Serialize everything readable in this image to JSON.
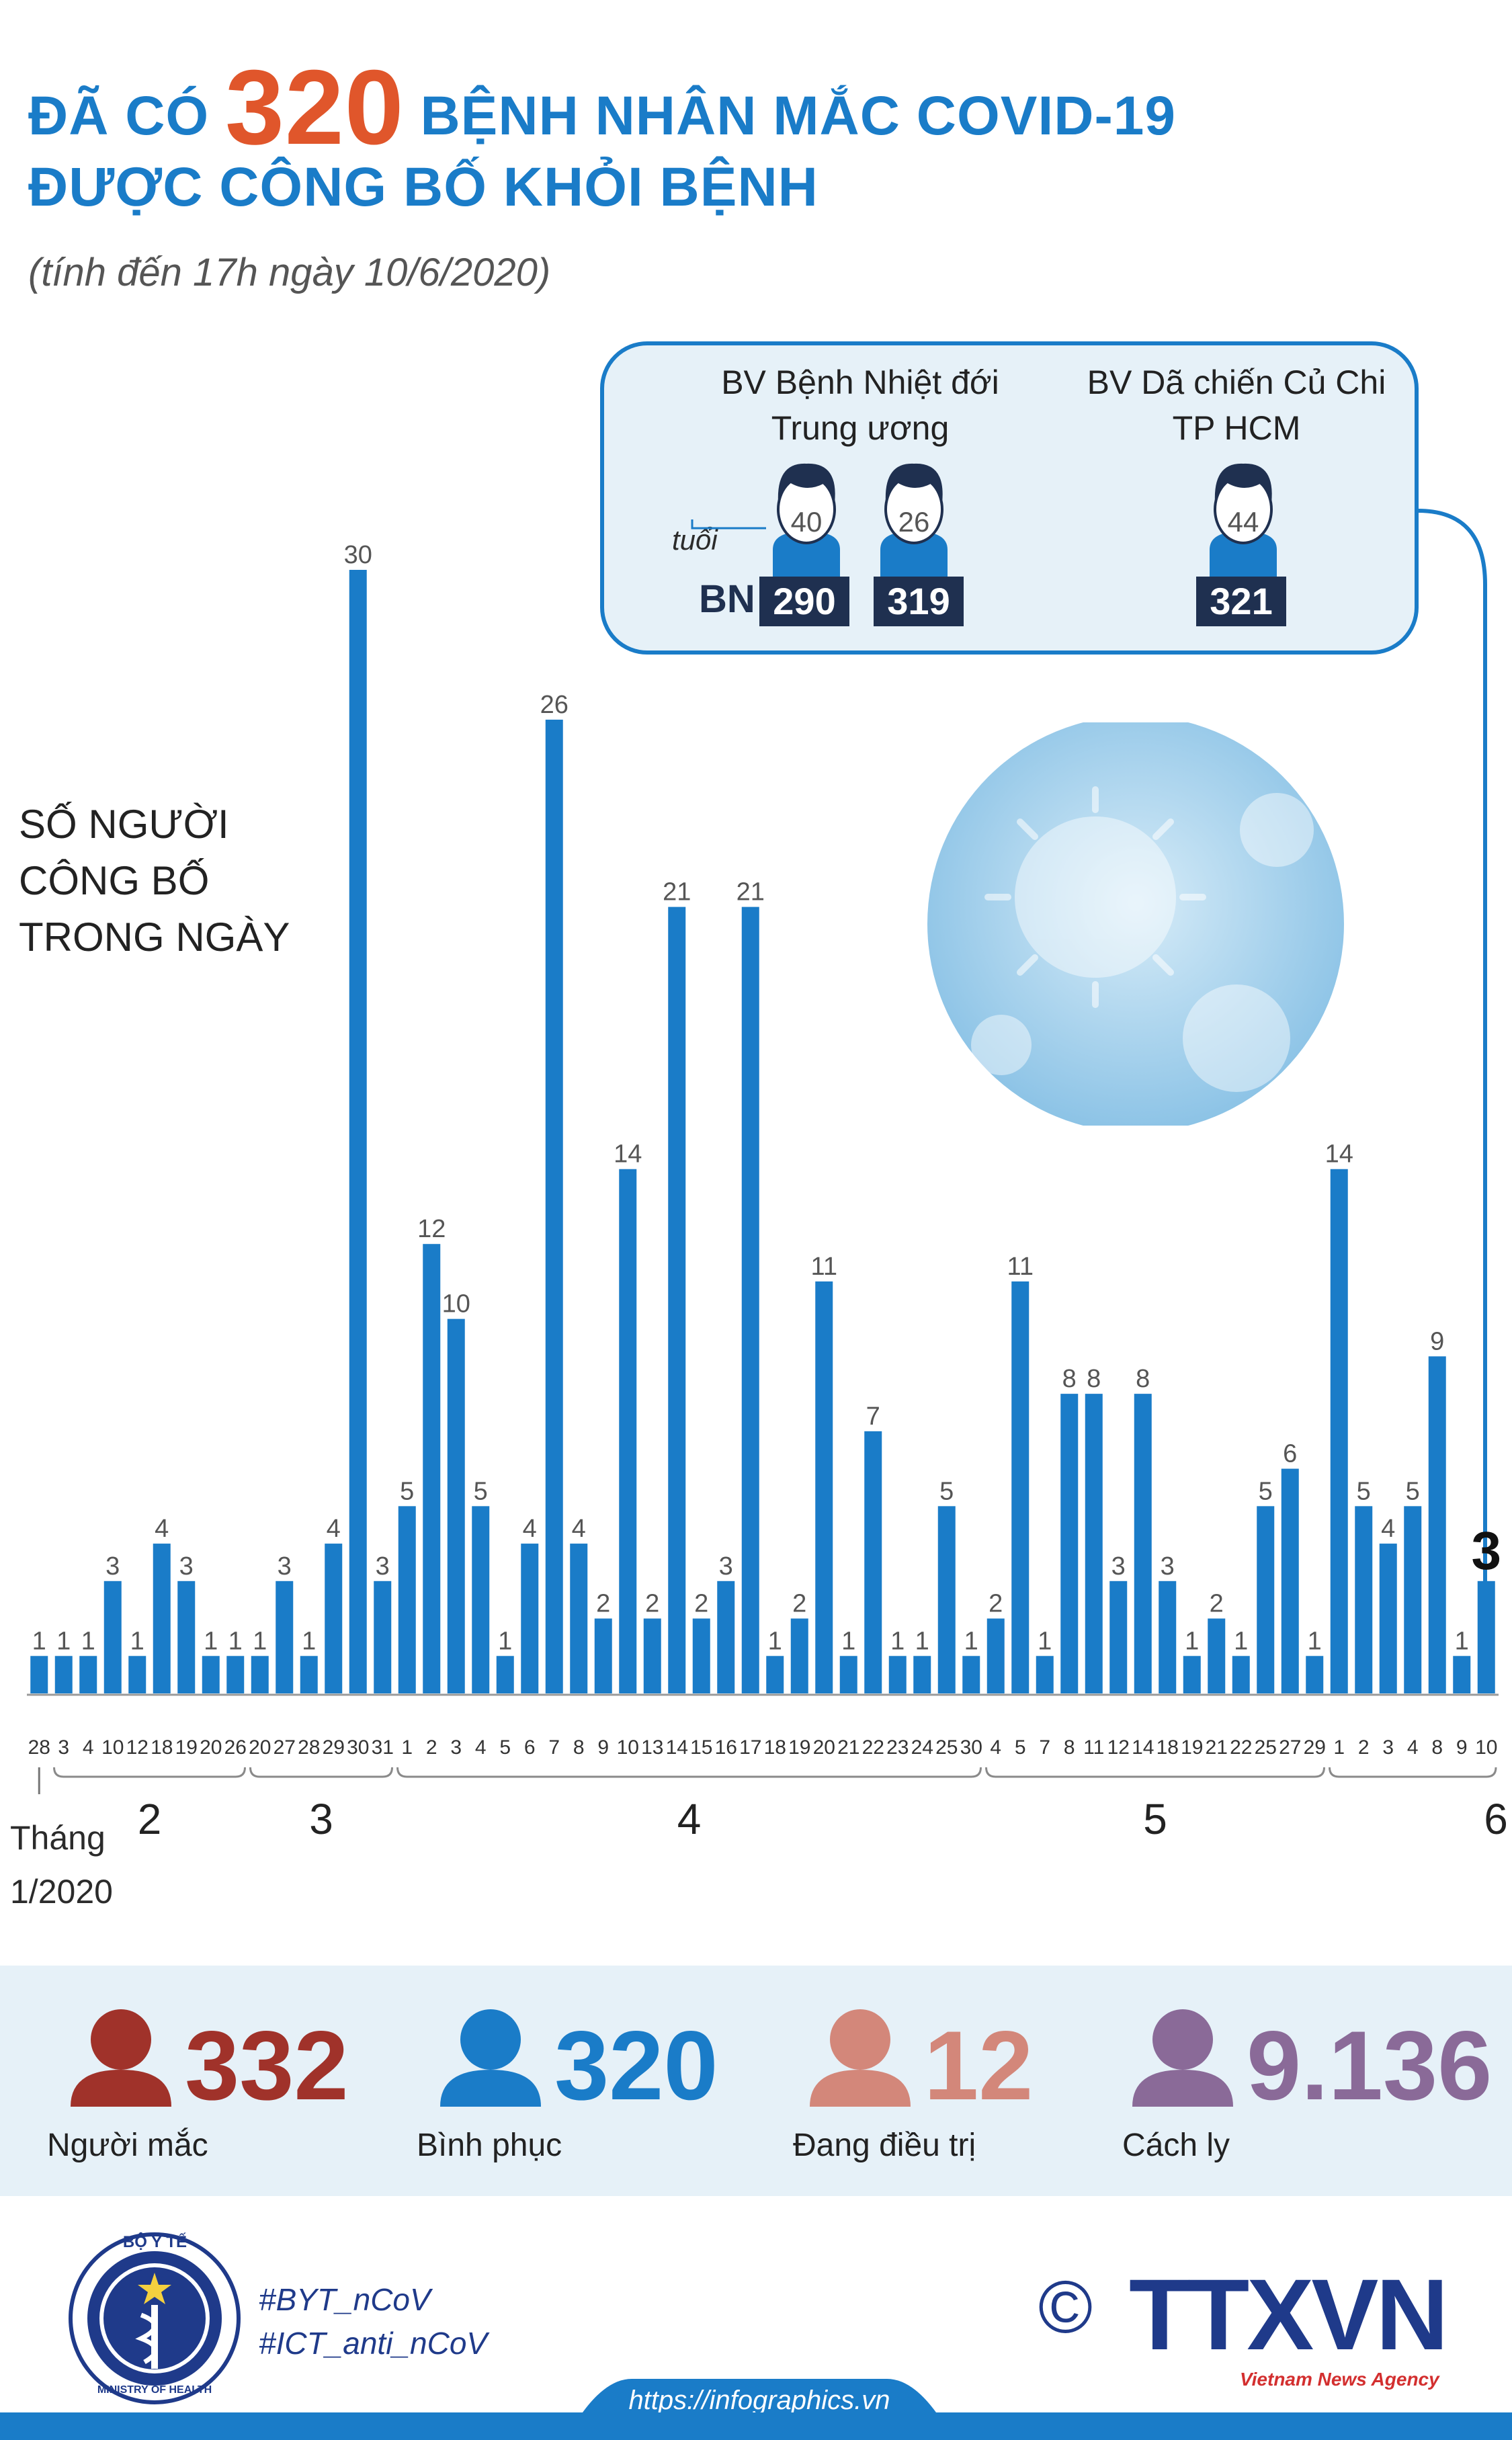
{
  "title": {
    "line1_pre": "ĐÃ CÓ",
    "line1_number": "320",
    "line1_post": "BỆNH NHÂN MẮC COVID-19",
    "line2": "ĐƯỢC CÔNG BỐ KHỎI BỆNH",
    "subtitle": "(tính đến 17h ngày 10/6/2020)"
  },
  "y_label_lines": [
    "SỐ NGƯỜI",
    "CÔNG BỐ",
    "TRONG NGÀY"
  ],
  "callout": {
    "hospital1": [
      "BV Bệnh Nhiệt đới",
      "Trung ương"
    ],
    "hospital2": [
      "BV Dã chiến Củ Chi",
      "TP HCM"
    ],
    "age_label": "tuổi",
    "bn_label": "BN",
    "patients": [
      {
        "age": "40",
        "bn": "290"
      },
      {
        "age": "26",
        "bn": "319"
      },
      {
        "age": "44",
        "bn": "321"
      }
    ]
  },
  "chart_data": {
    "type": "bar",
    "categories": [
      "28",
      "3",
      "4",
      "10",
      "12",
      "18",
      "19",
      "20",
      "26",
      "20",
      "27",
      "28",
      "29",
      "30",
      "31",
      "1",
      "2",
      "3",
      "4",
      "5",
      "6",
      "7",
      "8",
      "9",
      "10",
      "13",
      "14",
      "15",
      "16",
      "17",
      "18",
      "19",
      "20",
      "21",
      "22",
      "23",
      "24",
      "25",
      "30",
      "4",
      "5",
      "7",
      "8",
      "11",
      "12",
      "14",
      "18",
      "19",
      "21",
      "22",
      "25",
      "27",
      "29",
      "1",
      "2",
      "3",
      "4",
      "8",
      "9",
      "10"
    ],
    "values": [
      1,
      1,
      1,
      3,
      1,
      4,
      3,
      1,
      1,
      1,
      3,
      1,
      4,
      30,
      3,
      5,
      12,
      10,
      5,
      1,
      4,
      26,
      4,
      2,
      14,
      2,
      21,
      2,
      3,
      21,
      1,
      2,
      11,
      1,
      7,
      1,
      1,
      5,
      1,
      2,
      11,
      1,
      8,
      8,
      3,
      8,
      3,
      1,
      2,
      1,
      5,
      6,
      1,
      14,
      5,
      4,
      5,
      9,
      1,
      3
    ],
    "tick_labels": [
      "28",
      "3",
      "4",
      "10",
      "12",
      "18",
      "19",
      "20",
      "26",
      "20",
      "27",
      "28",
      "29",
      "30",
      "31",
      "1",
      "2",
      "3",
      "4",
      "5",
      "6",
      "7",
      "8",
      "9",
      "10",
      "13",
      "14",
      "15",
      "16",
      "17",
      "18",
      "19",
      "20",
      "21",
      "22",
      "23",
      "24",
      "25",
      "30",
      "4",
      "5",
      "7",
      "8",
      "11",
      "12",
      "14",
      "18",
      "19",
      "21",
      "22",
      "25",
      "27",
      "29",
      "1",
      "2",
      "3",
      "4",
      "8",
      "9",
      "10"
    ],
    "months": [
      {
        "label": "2",
        "from": 1,
        "to": 8
      },
      {
        "label": "3",
        "from": 9,
        "to": 14
      },
      {
        "label": "4",
        "from": 15,
        "to": 38
      },
      {
        "label": "5",
        "from": 39,
        "to": 52
      },
      {
        "label": "6",
        "from": 53,
        "to": 59
      }
    ],
    "first_month_label": [
      "Tháng",
      "1/2020"
    ],
    "highlight_index": 59,
    "ylim": [
      0,
      30
    ],
    "colors": {
      "bar": "#1a7cc8",
      "label": "#555555",
      "highlight_label": "#111111"
    }
  },
  "stats": [
    {
      "value": "332",
      "label": "Người mắc",
      "color": "#a0322a"
    },
    {
      "value": "320",
      "label": "Bình phục",
      "color": "#1a7cc8"
    },
    {
      "value": "12",
      "label": "Đang điều trị",
      "color": "#d3877a"
    },
    {
      "value": "9.136",
      "label": "Cách ly",
      "color": "#8a6a98"
    }
  ],
  "footer": {
    "hashtag1": "#BYT_nCoV",
    "hashtag2": "#ICT_anti_nCoV",
    "url": "https://infographics.vn",
    "copyright": "©",
    "agency": "TTXVN",
    "agency_sub": "Vietnam News Agency",
    "moh_top": "BỘ Y TẾ",
    "moh_bottom": "MINISTRY OF HEALTH"
  }
}
